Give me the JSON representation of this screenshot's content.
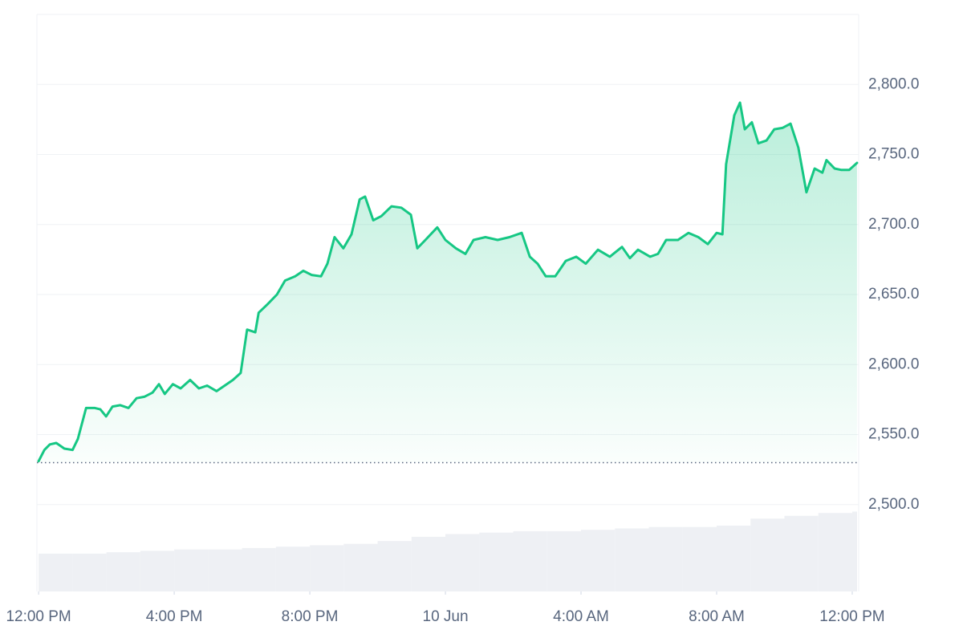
{
  "chart_data": {
    "type": "line",
    "x": [
      0,
      0.17,
      0.33,
      0.52,
      0.76,
      1.0,
      1.16,
      1.4,
      1.66,
      1.82,
      1.99,
      2.18,
      2.41,
      2.65,
      2.89,
      3.12,
      3.36,
      3.55,
      3.72,
      3.96,
      4.19,
      4.47,
      4.73,
      4.97,
      5.25,
      5.49,
      5.73,
      5.96,
      6.15,
      6.39,
      6.49,
      6.75,
      7.03,
      7.27,
      7.57,
      7.81,
      8.05,
      8.33,
      8.52,
      8.73,
      8.99,
      9.23,
      9.47,
      9.63,
      9.87,
      10.11,
      10.41,
      10.7,
      10.98,
      11.17,
      11.41,
      11.76,
      12.0,
      12.31,
      12.59,
      12.83,
      13.18,
      13.54,
      13.89,
      14.25,
      14.49,
      14.72,
      14.96,
      15.24,
      15.55,
      15.86,
      16.14,
      16.5,
      16.85,
      17.21,
      17.44,
      17.68,
      18.04,
      18.27,
      18.51,
      18.86,
      19.17,
      19.46,
      19.74,
      20.0,
      20.17,
      20.28,
      20.52,
      20.69,
      20.83,
      21.04,
      21.23,
      21.47,
      21.7,
      21.94,
      22.18,
      22.41,
      22.65,
      22.89,
      23.12,
      23.24,
      23.48,
      23.67,
      23.91,
      24.14
    ],
    "series": [
      {
        "color": "#16c784",
        "values": [
          2531,
          2539,
          2543,
          2544,
          2540,
          2539,
          2547,
          2569,
          2569,
          2568,
          2563,
          2570,
          2571,
          2569,
          2576,
          2577,
          2580,
          2586,
          2579,
          2586,
          2583,
          2589,
          2583,
          2585,
          2581,
          2585,
          2589,
          2594,
          2625,
          2623,
          2637,
          2643,
          2650,
          2660,
          2663,
          2667,
          2664,
          2663,
          2672,
          2691,
          2683,
          2693,
          2718,
          2720,
          2703,
          2706,
          2713,
          2712,
          2707,
          2683,
          2689,
          2698,
          2689,
          2683,
          2679,
          2689,
          2691,
          2689,
          2691,
          2694,
          2677,
          2672,
          2663,
          2663,
          2674,
          2677,
          2672,
          2682,
          2677,
          2684,
          2676,
          2682,
          2677,
          2679,
          2689,
          2689,
          2694,
          2691,
          2686,
          2694,
          2693,
          2743,
          2778,
          2787,
          2768,
          2773,
          2758,
          2760,
          2768,
          2769,
          2772,
          2755,
          2723,
          2740,
          2737,
          2746,
          2740,
          2739,
          2739,
          2744
        ]
      }
    ],
    "baseline": 2530,
    "volume": {
      "color": "#eef0f4",
      "values": [
        2465,
        2465,
        2466,
        2467,
        2468,
        2468,
        2469,
        2470,
        2471,
        2472,
        2474,
        2477,
        2479,
        2480,
        2481,
        2481,
        2482,
        2483,
        2484,
        2484,
        2485,
        2490,
        2492,
        2494,
        2495
      ]
    },
    "xlim": [
      -0.05,
      24.19
    ],
    "xticks": [
      {
        "value": 0,
        "label": "12:00 PM"
      },
      {
        "value": 4,
        "label": "4:00 PM"
      },
      {
        "value": 8,
        "label": "8:00 PM"
      },
      {
        "value": 12,
        "label": "10 Jun"
      },
      {
        "value": 16,
        "label": "4:00 AM"
      },
      {
        "value": 20,
        "label": "8:00 AM"
      },
      {
        "value": 24,
        "label": "12:00 PM"
      }
    ],
    "ylim": [
      2438,
      2850
    ],
    "yticks": [
      {
        "value": 2500,
        "label": "2,500.0"
      },
      {
        "value": 2550,
        "label": "2,550.0"
      },
      {
        "value": 2600,
        "label": "2,600.0"
      },
      {
        "value": 2650,
        "label": "2,650.0"
      },
      {
        "value": 2700,
        "label": "2,700.0"
      },
      {
        "value": 2750,
        "label": "2,750.0"
      },
      {
        "value": 2800,
        "label": "2,800.0"
      }
    ],
    "grid": true
  }
}
